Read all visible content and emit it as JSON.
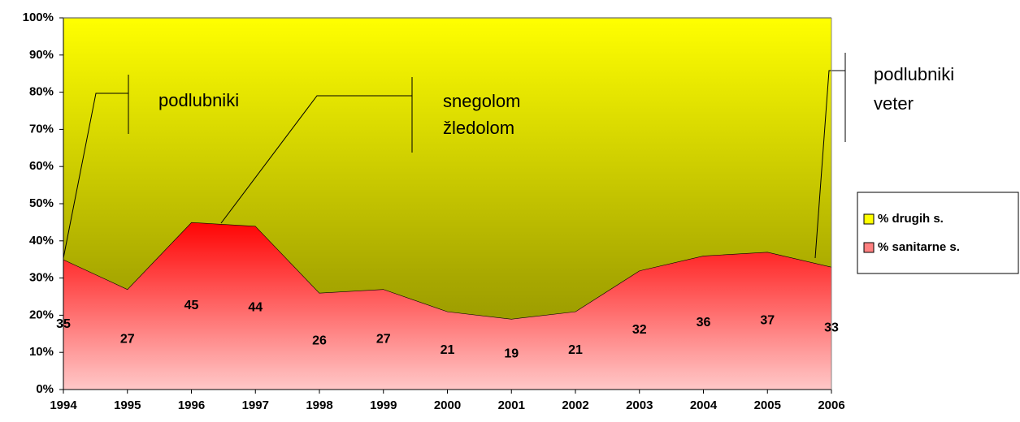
{
  "chart_data": {
    "type": "stacked_area_100",
    "categories": [
      "1994",
      "1995",
      "1996",
      "1997",
      "1998",
      "1999",
      "2000",
      "2001",
      "2002",
      "2003",
      "2004",
      "2005",
      "2006"
    ],
    "series": [
      {
        "name": "% sanitarne s.",
        "color": "#ff8080",
        "values": [
          35,
          27,
          45,
          44,
          26,
          27,
          21,
          19,
          21,
          32,
          36,
          37,
          33
        ],
        "data_labels": true
      },
      {
        "name": "% drugih s.",
        "color": "#ffff00",
        "values": [
          65,
          73,
          55,
          56,
          74,
          73,
          79,
          81,
          79,
          68,
          64,
          63,
          67
        ]
      }
    ],
    "ylim": [
      0,
      100
    ],
    "yticks": [
      {
        "value": 0,
        "label": "0%"
      },
      {
        "value": 10,
        "label": "10%"
      },
      {
        "value": 20,
        "label": "20%"
      },
      {
        "value": 30,
        "label": "30%"
      },
      {
        "value": 40,
        "label": "40%"
      },
      {
        "value": 50,
        "label": "50%"
      },
      {
        "value": 60,
        "label": "60%"
      },
      {
        "value": 70,
        "label": "70%"
      },
      {
        "value": 80,
        "label": "80%"
      },
      {
        "value": 90,
        "label": "90%"
      },
      {
        "value": 100,
        "label": "100%"
      }
    ],
    "legend": "right",
    "annotations": [
      [
        "podlubniki"
      ],
      [
        "snegolom",
        "žledolom"
      ],
      [
        "podlubniki",
        "veter"
      ]
    ]
  }
}
